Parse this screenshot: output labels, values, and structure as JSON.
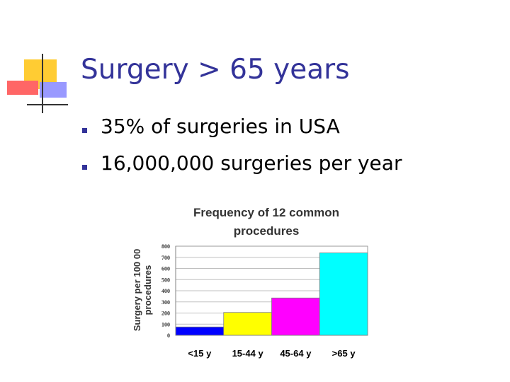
{
  "slide": {
    "title": "Surgery > 65 years",
    "bullets": [
      "35% of surgeries in USA",
      "16,000,000 surgeries per year"
    ]
  },
  "colors": {
    "title": "#333399",
    "bullet": "#333399",
    "logo_yellow": "#FFCC33",
    "logo_red": "#FF6666",
    "logo_blue": "#9999FF"
  },
  "chart_data": {
    "type": "bar",
    "title_lines": [
      "Frequency of 12 common",
      "procedures"
    ],
    "ylabel_lines": [
      "Surgery per 100 00",
      "procedures"
    ],
    "xlabel": "",
    "categories": [
      "<15 y",
      "15-44 y",
      "45-64 y",
      ">65 y"
    ],
    "values": [
      75,
      205,
      335,
      740
    ],
    "colors": [
      "#0000FF",
      "#FFFF00",
      "#FF00FF",
      "#00FFFF"
    ],
    "ylim": [
      0,
      800
    ],
    "yticks": [
      0,
      100,
      200,
      300,
      400,
      500,
      600,
      700,
      800
    ],
    "grid": true,
    "legend": "none"
  }
}
